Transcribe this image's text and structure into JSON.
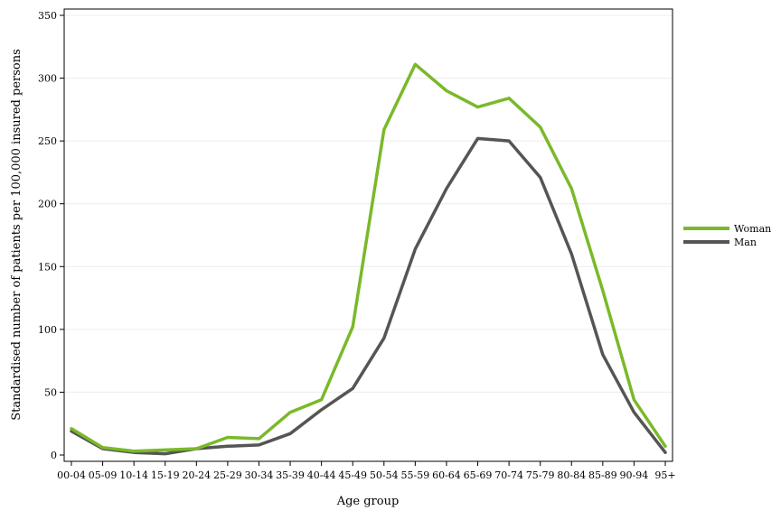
{
  "chart_data": {
    "type": "line",
    "title": "",
    "xlabel": "Age group",
    "ylabel": "Standardised number of patients per 100,000 insured persons",
    "ylim": [
      0,
      350
    ],
    "yticks": [
      0,
      50,
      100,
      150,
      200,
      250,
      300,
      350
    ],
    "grid": "horizontal",
    "legend_position": "right",
    "categories": [
      "00-04",
      "05-09",
      "10-14",
      "15-19",
      "20-24",
      "25-29",
      "30-34",
      "35-39",
      "40-44",
      "45-49",
      "50-54",
      "55-59",
      "60-64",
      "65-69",
      "70-74",
      "75-79",
      "80-84",
      "85-89",
      "90-94",
      "95+"
    ],
    "series": [
      {
        "name": "Woman",
        "color": "#7ab929",
        "values": [
          21,
          6,
          3,
          4,
          5,
          14,
          13,
          34,
          44,
          102,
          259,
          311,
          290,
          277,
          284,
          261,
          212,
          131,
          44,
          7
        ]
      },
      {
        "name": "Man",
        "color": "#555555",
        "values": [
          19,
          5,
          2,
          1,
          5,
          7,
          8,
          17,
          36,
          53,
          93,
          164,
          212,
          252,
          250,
          221,
          160,
          80,
          34,
          2
        ]
      }
    ]
  }
}
